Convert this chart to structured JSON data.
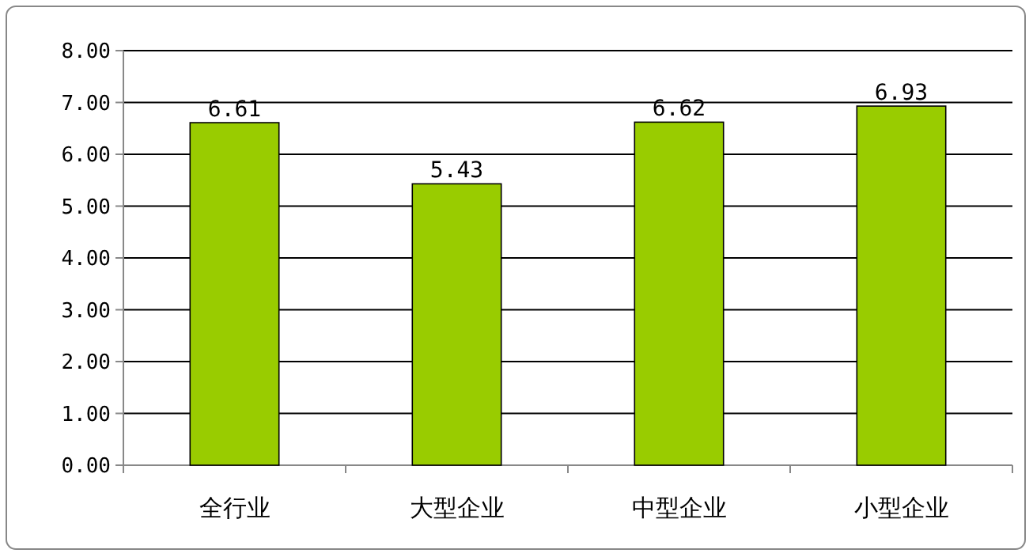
{
  "chart_data": {
    "type": "bar",
    "categories": [
      "全行业",
      "大型企业",
      "中型企业",
      "小型企业"
    ],
    "values": [
      6.61,
      5.43,
      6.62,
      6.93
    ],
    "color": "#99cc00",
    "ylim": [
      0,
      8
    ],
    "yticks": [
      {
        "value": 0,
        "label": "0.00"
      },
      {
        "value": 1,
        "label": "1.00"
      },
      {
        "value": 2,
        "label": "2.00"
      },
      {
        "value": 3,
        "label": "3.00"
      },
      {
        "value": 4,
        "label": "4.00"
      },
      {
        "value": 5,
        "label": "5.00"
      },
      {
        "value": 6,
        "label": "6.00"
      },
      {
        "value": 7,
        "label": "7.00"
      },
      {
        "value": 8,
        "label": "8.00"
      }
    ],
    "grid": "y",
    "data_labels": true
  }
}
